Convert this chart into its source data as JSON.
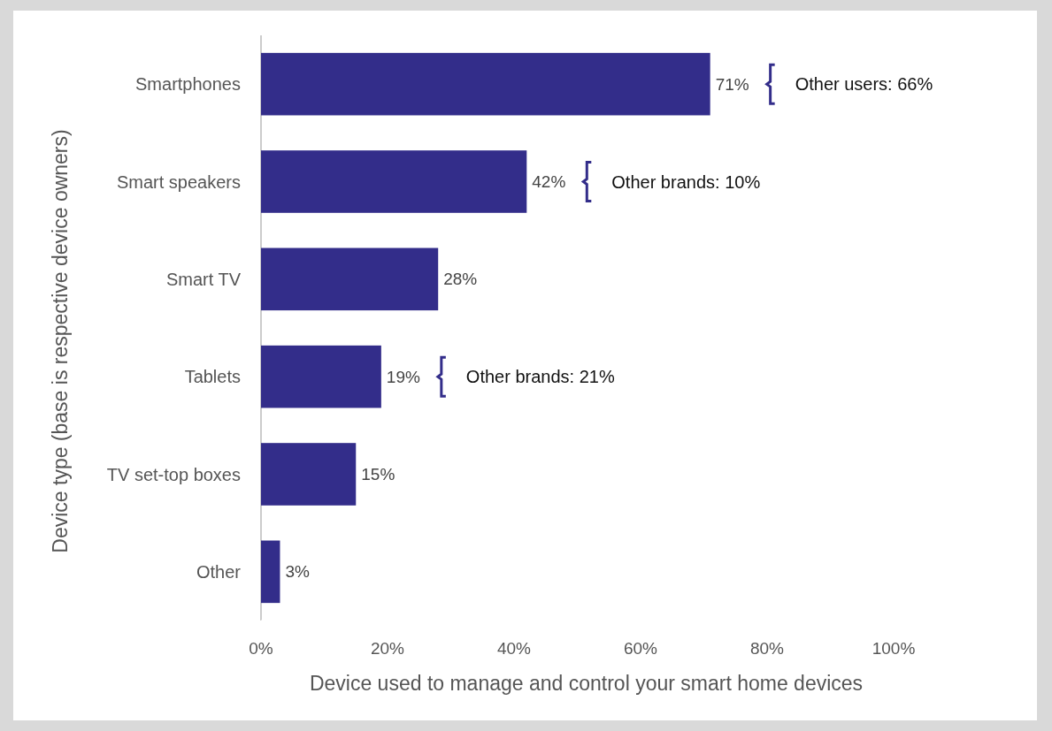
{
  "chart_data": {
    "type": "bar",
    "orientation": "horizontal",
    "ylabel": "Device type (base is respective device owners)",
    "xlabel": "Device used to manage and control your smart home devices",
    "categories": [
      "Smartphones",
      "Smart speakers",
      "Smart TV",
      "Tablets",
      "TV set-top boxes",
      "Other"
    ],
    "values": [
      71,
      42,
      28,
      19,
      15,
      3
    ],
    "color": "#332d8a",
    "value_labels": [
      "71%",
      "42%",
      "28%",
      "19%",
      "15%",
      "3%"
    ],
    "xlim": [
      0,
      100
    ],
    "xticks": [
      {
        "value": 0,
        "label": "0%"
      },
      {
        "value": 20,
        "label": "20%"
      },
      {
        "value": 40,
        "label": "40%"
      },
      {
        "value": 60,
        "label": "60%"
      },
      {
        "value": 80,
        "label": "80%"
      },
      {
        "value": 100,
        "label": "100%"
      }
    ],
    "annotations": [
      "Other users: 66%",
      "Other brands: 10%",
      "Other brands: 21%"
    ]
  }
}
